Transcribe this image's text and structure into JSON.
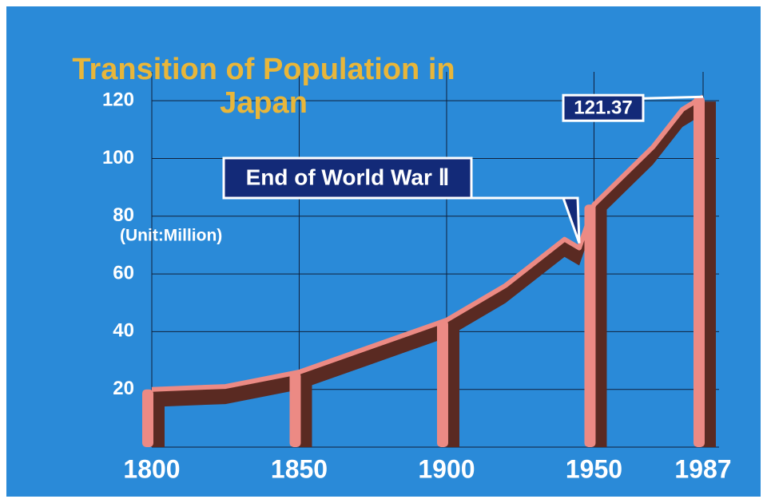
{
  "chart_data": {
    "type": "area",
    "title": "Transition of Population in Japan",
    "y_label": "(Unit:Million)",
    "annotation": "End of World War Ⅱ",
    "x": [
      1800,
      1825,
      1850,
      1875,
      1900,
      1920,
      1940,
      1945,
      1950,
      1960,
      1970,
      1980,
      1987
    ],
    "values": [
      20,
      21,
      26,
      35,
      44,
      56,
      72,
      69,
      84,
      94,
      104,
      117,
      121.37
    ],
    "color": "#ec8a84",
    "xlim": [
      1800,
      1987
    ],
    "xticks": [
      1800,
      1850,
      1900,
      1950,
      1987
    ],
    "ylim": [
      0,
      130
    ],
    "yticks": [
      20,
      40,
      60,
      80,
      100,
      120
    ],
    "grid": true
  }
}
